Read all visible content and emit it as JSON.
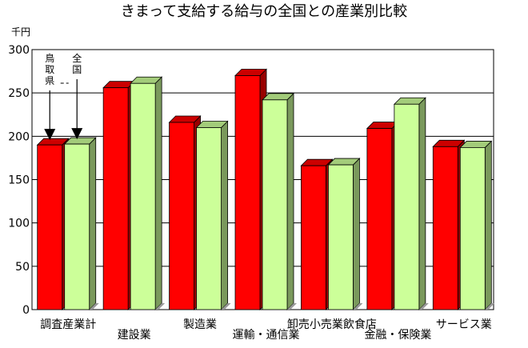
{
  "chart_data": {
    "type": "bar",
    "title": "きまって支給する給与の全国との産業別比較",
    "ylabel": "千円",
    "ylim": [
      0,
      300
    ],
    "yticks": [
      0,
      50,
      100,
      150,
      200,
      250,
      300
    ],
    "categories": [
      "調査産業計",
      "建設業",
      "製造業",
      "運輸・通信業",
      "卸売小売業飲食店",
      "金融・保険業",
      "サービス業"
    ],
    "series": [
      {
        "name": "鳥取県",
        "color": "#ff0000",
        "values": [
          190,
          256,
          216,
          270,
          166,
          209,
          188
        ]
      },
      {
        "name": "全国",
        "color": "#ccff99",
        "values": [
          191,
          261,
          210,
          242,
          167,
          237,
          187
        ]
      }
    ],
    "annotations": [
      "鳥取県",
      "全国"
    ],
    "grid": true
  }
}
